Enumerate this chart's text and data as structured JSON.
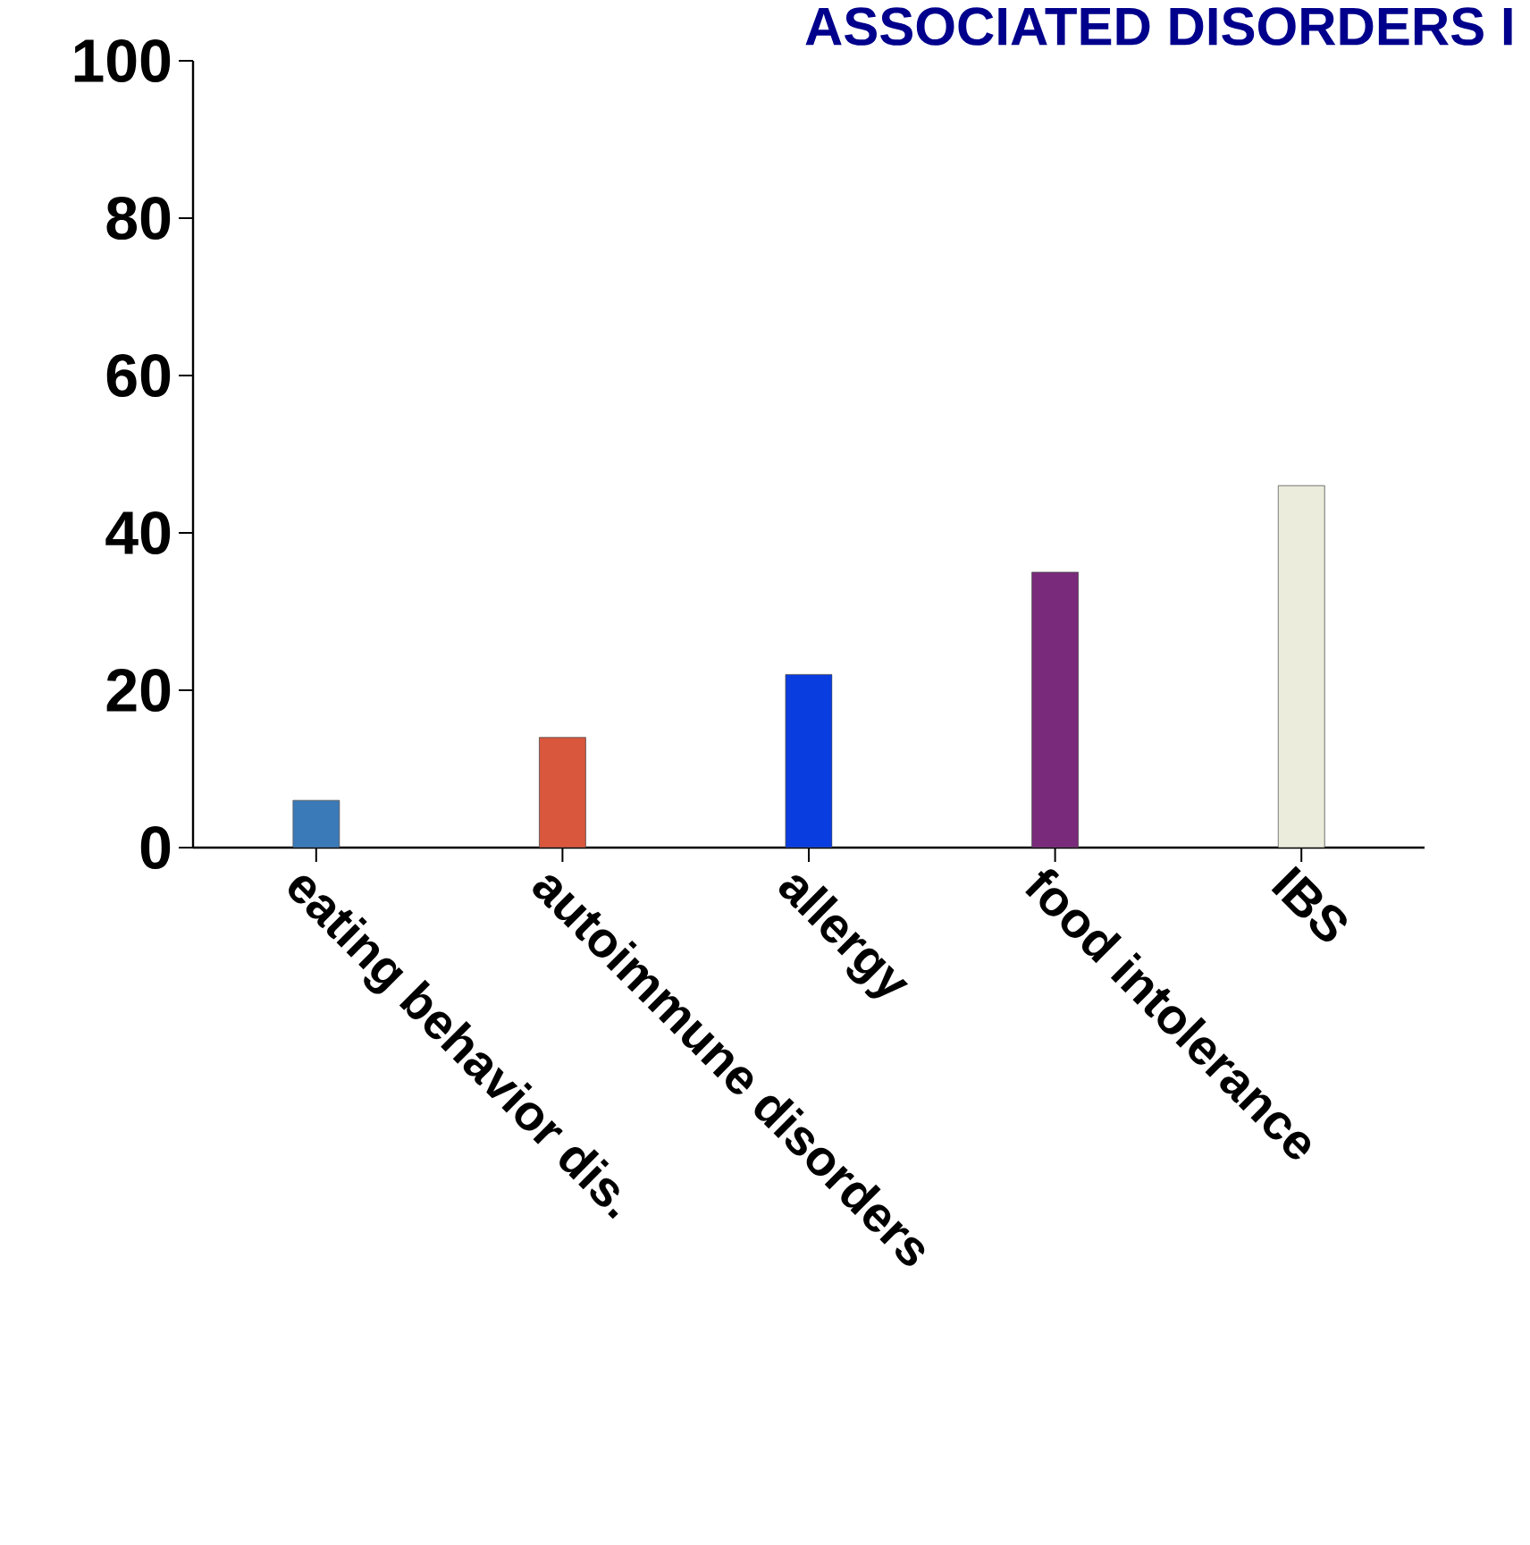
{
  "chart_data": {
    "type": "bar",
    "title": "ASSOCIATED DISORDERS I",
    "categories": [
      "eating behavior dis.",
      "autoimmune disorders",
      "allergy",
      "food intolerance",
      "IBS"
    ],
    "values": [
      6,
      14,
      22,
      35,
      46
    ],
    "colors": [
      "#3a7ab8",
      "#d9573d",
      "#0a3de0",
      "#7a2a7a",
      "#ececdc"
    ],
    "ylim": [
      0,
      100
    ],
    "yticks": [
      0,
      20,
      40,
      60,
      80,
      100
    ],
    "grid": false
  }
}
